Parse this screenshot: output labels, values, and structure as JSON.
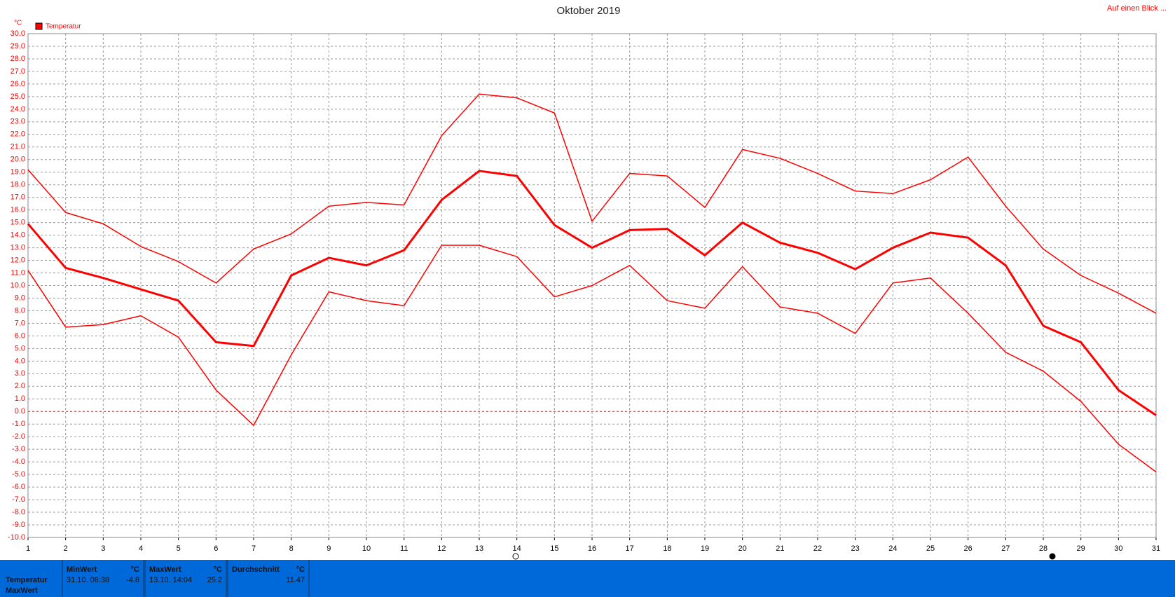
{
  "chart_data": {
    "type": "line",
    "title": "Oktober 2019",
    "y_unit": "°C",
    "legend": "Temperatur",
    "legend_color": "#ff0000",
    "x": [
      1,
      2,
      3,
      4,
      5,
      6,
      7,
      8,
      9,
      10,
      11,
      12,
      13,
      14,
      15,
      16,
      17,
      18,
      19,
      20,
      21,
      22,
      23,
      24,
      25,
      26,
      27,
      28,
      29,
      30,
      31
    ],
    "xlim": [
      1,
      31
    ],
    "xticks": [
      1,
      2,
      3,
      4,
      5,
      6,
      7,
      8,
      9,
      10,
      11,
      12,
      13,
      14,
      15,
      16,
      17,
      18,
      19,
      20,
      21,
      22,
      23,
      24,
      25,
      26,
      27,
      28,
      29,
      30,
      31
    ],
    "ylim": [
      -10,
      30
    ],
    "yticks": [
      {
        "value": -10,
        "label": "-10.0"
      },
      {
        "value": -9,
        "label": "-9.0"
      },
      {
        "value": -8,
        "label": "-8.0"
      },
      {
        "value": -7,
        "label": "-7.0"
      },
      {
        "value": -6,
        "label": "-6.0"
      },
      {
        "value": -5,
        "label": "-5.0"
      },
      {
        "value": -4,
        "label": "-4.0"
      },
      {
        "value": -3,
        "label": "-3.0"
      },
      {
        "value": -2,
        "label": "-2.0"
      },
      {
        "value": -1,
        "label": "-1.0"
      },
      {
        "value": 0,
        "label": "0.0"
      },
      {
        "value": 1,
        "label": "1.0"
      },
      {
        "value": 2,
        "label": "2.0"
      },
      {
        "value": 3,
        "label": "3.0"
      },
      {
        "value": 4,
        "label": "4.0"
      },
      {
        "value": 5,
        "label": "5.0"
      },
      {
        "value": 6,
        "label": "6.0"
      },
      {
        "value": 7,
        "label": "7.0"
      },
      {
        "value": 8,
        "label": "8.0"
      },
      {
        "value": 9,
        "label": "9.0"
      },
      {
        "value": 10,
        "label": "10.0"
      },
      {
        "value": 11,
        "label": "11.0"
      },
      {
        "value": 12,
        "label": "12.0"
      },
      {
        "value": 13,
        "label": "13.0"
      },
      {
        "value": 14,
        "label": "14.0"
      },
      {
        "value": 15,
        "label": "15.0"
      },
      {
        "value": 16,
        "label": "16.0"
      },
      {
        "value": 17,
        "label": "17.0"
      },
      {
        "value": 18,
        "label": "18.0"
      },
      {
        "value": 19,
        "label": "19.0"
      },
      {
        "value": 20,
        "label": "20.0"
      },
      {
        "value": 21,
        "label": "21.0"
      },
      {
        "value": 22,
        "label": "22.0"
      },
      {
        "value": 23,
        "label": "23.0"
      },
      {
        "value": 24,
        "label": "24.0"
      },
      {
        "value": 25,
        "label": "25.0"
      },
      {
        "value": 26,
        "label": "26.0"
      },
      {
        "value": 27,
        "label": "27.0"
      },
      {
        "value": 28,
        "label": "28.0"
      },
      {
        "value": 29,
        "label": "29.0"
      },
      {
        "value": 30,
        "label": "30.0"
      }
    ],
    "grid": true,
    "zero_line_color": "#ff0000",
    "series": [
      {
        "color": "#ff0000",
        "line_width": 1.5,
        "values": [
          19.2,
          15.8,
          14.9,
          13.1,
          11.9,
          10.2,
          12.9,
          14.1,
          16.3,
          16.6,
          16.4,
          21.9,
          25.2,
          24.9,
          23.7,
          15.1,
          18.9,
          18.7,
          16.2,
          20.8,
          20.1,
          18.9,
          17.5,
          17.3,
          18.4,
          20.2,
          16.3,
          12.9,
          10.8,
          9.4,
          7.8
        ]
      },
      {
        "color": "#ff0000",
        "line_width": 3,
        "values": [
          14.9,
          11.4,
          10.6,
          9.7,
          8.8,
          5.5,
          5.2,
          10.8,
          12.2,
          11.6,
          12.8,
          16.8,
          19.1,
          18.7,
          14.8,
          13.0,
          14.4,
          14.5,
          12.4,
          15.0,
          13.4,
          12.6,
          11.3,
          13.0,
          14.2,
          13.8,
          11.6,
          6.8,
          5.5,
          1.7,
          -0.3
        ]
      },
      {
        "color": "#ff0000",
        "line_width": 1.5,
        "values": [
          11.2,
          6.7,
          6.9,
          7.6,
          5.9,
          1.7,
          -1.1,
          4.5,
          9.5,
          8.8,
          8.4,
          13.2,
          13.2,
          12.3,
          9.1,
          10.0,
          11.6,
          8.8,
          8.2,
          11.5,
          8.3,
          7.8,
          6.2,
          10.2,
          10.6,
          7.8,
          4.7,
          3.2,
          0.8,
          -2.6,
          -4.8
        ]
      }
    ]
  },
  "link": "Auf einen Blick ...",
  "summary": {
    "row_labels": [
      "Temperatur",
      "MaxWert"
    ],
    "columns": [
      {
        "header": "MinWert",
        "unit": "°C",
        "time": "31.10. 06:38",
        "value": -4.8
      },
      {
        "header": "MaxWert",
        "unit": "°C",
        "time": "13.10. 14:04",
        "value": 25.2
      },
      {
        "header": "Durchschnitt",
        "unit": "°C",
        "value": 11.47
      }
    ]
  }
}
